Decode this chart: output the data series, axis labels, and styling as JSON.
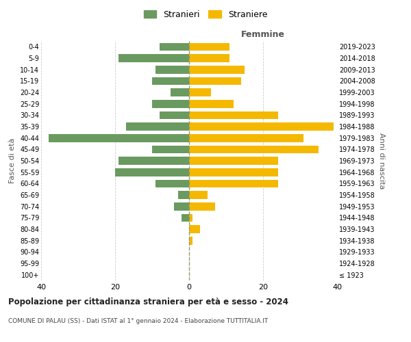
{
  "age_groups": [
    "100+",
    "95-99",
    "90-94",
    "85-89",
    "80-84",
    "75-79",
    "70-74",
    "65-69",
    "60-64",
    "55-59",
    "50-54",
    "45-49",
    "40-44",
    "35-39",
    "30-34",
    "25-29",
    "20-24",
    "15-19",
    "10-14",
    "5-9",
    "0-4"
  ],
  "birth_years": [
    "≤ 1923",
    "1924-1928",
    "1929-1933",
    "1934-1938",
    "1939-1943",
    "1944-1948",
    "1949-1953",
    "1954-1958",
    "1959-1963",
    "1964-1968",
    "1969-1973",
    "1974-1978",
    "1979-1983",
    "1984-1988",
    "1989-1993",
    "1994-1998",
    "1999-2003",
    "2004-2008",
    "2009-2013",
    "2014-2018",
    "2019-2023"
  ],
  "males": [
    0,
    0,
    0,
    0,
    0,
    2,
    4,
    3,
    9,
    20,
    19,
    10,
    38,
    17,
    8,
    10,
    5,
    10,
    9,
    19,
    8
  ],
  "females": [
    0,
    0,
    0,
    1,
    3,
    1,
    7,
    5,
    24,
    24,
    24,
    35,
    31,
    39,
    24,
    12,
    6,
    14,
    15,
    11,
    11
  ],
  "male_color": "#6a9a5f",
  "female_color": "#f5b800",
  "title": "Popolazione per cittadinanza straniera per età e sesso - 2024",
  "subtitle": "COMUNE DI PALAU (SS) - Dati ISTAT al 1° gennaio 2024 - Elaborazione TUTTITALIA.IT",
  "xlabel_right": "Femmine",
  "ylabel_left": "Fasce di età",
  "ylabel_right": "Anni di nascita",
  "legend_male": "Stranieri",
  "legend_female": "Straniere",
  "xlim": 40,
  "background_color": "#ffffff",
  "grid_color": "#cccccc"
}
